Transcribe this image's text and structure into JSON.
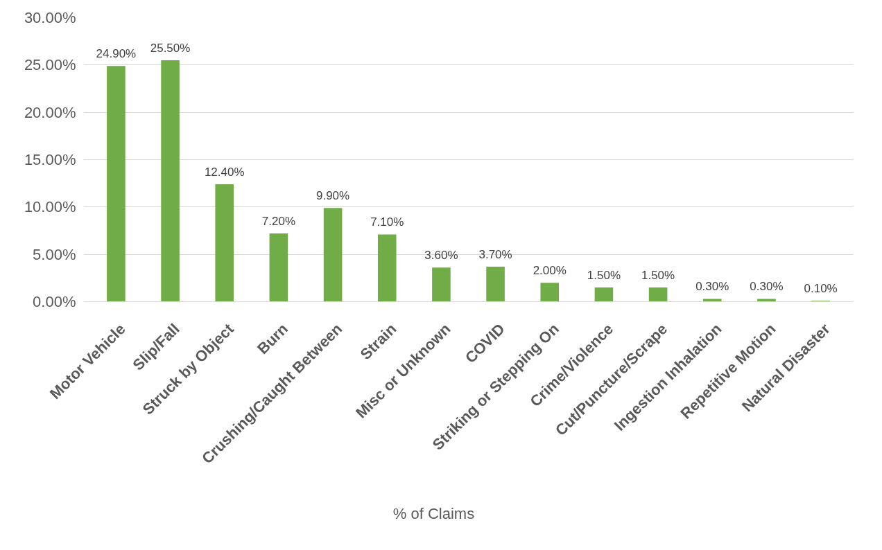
{
  "chart_data": {
    "type": "bar",
    "categories": [
      "Motor Vehicle",
      "Slip/Fall",
      "Struck by Object",
      "Burn",
      "Crushing/Caught Between",
      "Strain",
      "Misc or Unknown",
      "COVID",
      "Striking or Stepping On",
      "Crime/Violence",
      "Cut/Puncture/Scrape",
      "Ingestion Inhalation",
      "Repetitive Motion",
      "Natural Disaster"
    ],
    "series": [
      {
        "name": "% of Claims",
        "color": "#70ad47",
        "values": [
          24.9,
          25.5,
          12.4,
          7.2,
          9.9,
          7.1,
          3.6,
          3.7,
          2.0,
          1.5,
          1.5,
          0.3,
          0.3,
          0.1
        ],
        "value_labels": [
          "24.90%",
          "25.50%",
          "12.40%",
          "7.20%",
          "9.90%",
          "7.10%",
          "3.60%",
          "3.70%",
          "2.00%",
          "1.50%",
          "1.50%",
          "0.30%",
          "0.30%",
          "0.10%"
        ]
      }
    ],
    "ylim": [
      0,
      30
    ],
    "yticks": [
      {
        "value": 0,
        "label": "0.00%"
      },
      {
        "value": 5,
        "label": "5.00%"
      },
      {
        "value": 10,
        "label": "10.00%"
      },
      {
        "value": 15,
        "label": "15.00%"
      },
      {
        "value": 20,
        "label": "20.00%"
      },
      {
        "value": 25,
        "label": "25.00%"
      },
      {
        "value": 30,
        "label": "30.00%"
      }
    ],
    "grid": "y",
    "legend": "bottom"
  }
}
